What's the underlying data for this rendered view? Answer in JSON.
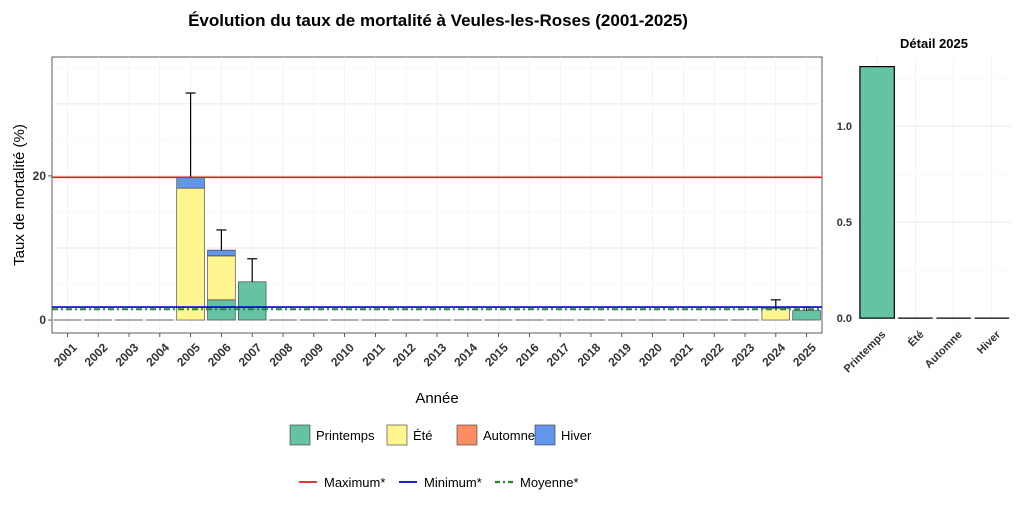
{
  "colors": {
    "printemps": "#66C2A5",
    "ete": "#FFF68F",
    "automne": "#FC8D62",
    "hiver": "#6495ED",
    "maximum": "#E41A1C",
    "minimum": "#0000CD",
    "moyenne": "#228B22"
  },
  "chart_data": [
    {
      "type": "bar",
      "stacked": true,
      "title": "Évolution du taux de mortalité à Veules-les-Roses (2001-2025)",
      "xlabel": "Année",
      "ylabel": "Taux de mortalité (%)",
      "ylim": [
        -1.8,
        36.5
      ],
      "yticks": [
        0,
        20
      ],
      "grid": true,
      "legend_position": "bottom",
      "categories": [
        "2001",
        "2002",
        "2003",
        "2004",
        "2005",
        "2006",
        "2007",
        "2008",
        "2009",
        "2010",
        "2011",
        "2012",
        "2013",
        "2014",
        "2015",
        "2016",
        "2017",
        "2018",
        "2019",
        "2020",
        "2021",
        "2022",
        "2023",
        "2024",
        "2025"
      ],
      "series": [
        {
          "name": "Printemps",
          "key": "printemps",
          "values": [
            0,
            0,
            0,
            0,
            0,
            2.8,
            5.3,
            0,
            0,
            0,
            0,
            0,
            0,
            0,
            0,
            0,
            0,
            0,
            0,
            0,
            0,
            0,
            0,
            0,
            1.3
          ]
        },
        {
          "name": "Été",
          "key": "ete",
          "values": [
            0,
            0,
            0,
            0,
            18.3,
            6.1,
            0,
            0,
            0,
            0,
            0,
            0,
            0,
            0,
            0,
            0,
            0,
            0,
            0,
            0,
            0,
            0,
            0,
            1.6,
            0
          ]
        },
        {
          "name": "Automne",
          "key": "automne",
          "values": [
            0,
            0,
            0,
            0,
            0,
            0,
            0,
            0,
            0,
            0,
            0,
            0,
            0,
            0,
            0,
            0,
            0,
            0,
            0,
            0,
            0,
            0,
            0,
            0,
            0
          ]
        },
        {
          "name": "Hiver",
          "key": "hiver",
          "values": [
            0,
            0,
            0,
            0,
            1.5,
            0.8,
            0,
            0,
            0,
            0,
            0,
            0,
            0,
            0,
            0,
            0,
            0,
            0,
            0,
            0,
            0,
            0,
            0,
            0,
            0
          ]
        }
      ],
      "error_bar_upper": [
        0,
        0,
        0,
        0,
        31.5,
        12.5,
        8.5,
        0,
        0,
        0,
        0,
        0,
        0,
        0,
        0,
        0,
        0,
        0,
        0,
        0,
        0,
        0,
        0,
        2.8,
        1.8
      ],
      "reference_lines": [
        {
          "name": "Maximum*",
          "key": "maximum",
          "value": 19.8,
          "style": "solid"
        },
        {
          "name": "Minimum*",
          "key": "minimum",
          "value": 1.8,
          "style": "solid"
        },
        {
          "name": "Moyenne*",
          "key": "moyenne",
          "value": 1.5,
          "style": "dotdash"
        }
      ]
    },
    {
      "type": "bar",
      "title": "Détail 2025",
      "categories": [
        "Printemps",
        "Été",
        "Automne",
        "Hiver"
      ],
      "series_keys": [
        "printemps",
        "ete",
        "automne",
        "hiver"
      ],
      "values": [
        1.31,
        0,
        0,
        0
      ],
      "ylim": [
        -0.02,
        1.36
      ],
      "yticks": [
        "0.0",
        "0.5",
        "1.0"
      ],
      "ytick_values": [
        0,
        0.5,
        1.0
      ],
      "grid": true
    }
  ]
}
